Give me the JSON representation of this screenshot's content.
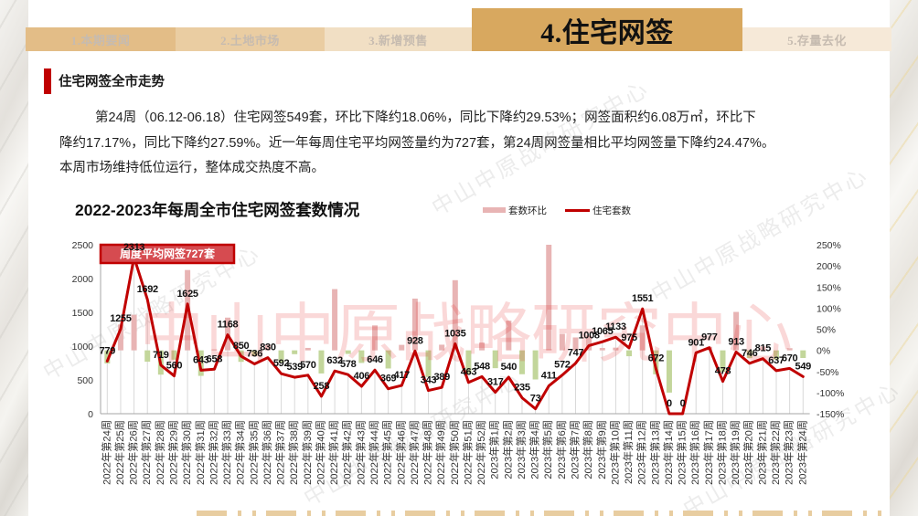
{
  "tabs": {
    "items": [
      {
        "label": "1.本期要闻",
        "active": false
      },
      {
        "label": "2.土地市场",
        "active": false
      },
      {
        "label": "3.新增预售",
        "active": false
      },
      {
        "label": "4.住宅网签",
        "active": true
      },
      {
        "label": "5.存量去化",
        "active": false
      }
    ]
  },
  "section": {
    "title": "住宅网签全市走势"
  },
  "summary": {
    "lines": [
      "第24周（06.12-06.18）住宅网签549套，环比下降约18.06%，同比下降约29.53%；网签面积约6.08万㎡，环比下",
      "降约17.17%，同比下降约27.59%。近一年每周住宅平均网签量约为727套，第24周网签量相比平均网签量下降约24.47%。",
      "本周市场维持低位运行，整体成交热度不高。"
    ]
  },
  "watermark": {
    "text": "中山中原战略研究中心"
  },
  "colors": {
    "accent": "#c00000",
    "line": "#c00000",
    "bar_positive": "#e8b4b4",
    "bar_negative": "#c3d69b",
    "drop_line": "#d9d9d9",
    "axis": "#a6a6a6",
    "annotation_fill": "#d64b50",
    "annotation_border": "#c00000",
    "tab_active": "#d8a85f"
  },
  "chart_data": {
    "type": "line",
    "title": "2022-2023年每周全市住宅网签套数情况",
    "xlabel": "",
    "ylabel": "",
    "grid": false,
    "legend": {
      "position": "top",
      "items": [
        {
          "label": "套数环比",
          "kind": "bar"
        },
        {
          "label": "住宅套数",
          "kind": "line"
        }
      ]
    },
    "annotation": {
      "text": "周度平均网签727套",
      "value": 727
    },
    "categories": [
      "2022年第24周",
      "2022年第25周",
      "2022年第26周",
      "2022年第27周",
      "2022年第28周",
      "2022年第29周",
      "2022年第30周",
      "2022年第31周",
      "2022年第32周",
      "2022年第33周",
      "2022年第34周",
      "2022年第35周",
      "2022年第36周",
      "2022年第37周",
      "2022年第38周",
      "2022年第39周",
      "2022年第40周",
      "2022年第41周",
      "2022年第42周",
      "2022年第43周",
      "2022年第44周",
      "2022年第45周",
      "2022年第46周",
      "2022年第47周",
      "2022年第48周",
      "2022年第49周",
      "2022年第50周",
      "2022年第51周",
      "2022年第52周",
      "2023年第1周",
      "2023年第2周",
      "2023年第3周",
      "2023年第4周",
      "2023年第5周",
      "2023年第6周",
      "2023年第7周",
      "2023年第8周",
      "2023年第9周",
      "2023年第10周",
      "2023年第11周",
      "2023年第12周",
      "2023年第13周",
      "2023年第14周",
      "2023年第15周",
      "2023年第16周",
      "2023年第17周",
      "2023年第18周",
      "2023年第19周",
      "2023年第20周",
      "2023年第21周",
      "2023年第22周",
      "2023年第23周",
      "2023年第24周"
    ],
    "series": [
      {
        "name": "套数环比",
        "type": "bar",
        "axis": "right",
        "unit": "%",
        "values": [
          -31,
          61.1,
          84.3,
          -26.8,
          -57.5,
          -22.1,
          190.2,
          -60.4,
          2.3,
          77.5,
          -27.2,
          -13.4,
          12.8,
          -28.7,
          -9.0,
          5.8,
          -54.7,
          145.0,
          -8.5,
          -29.8,
          59.1,
          -42.9,
          13.0,
          122.5,
          -63.0,
          13.4,
          166.1,
          -55.3,
          18.4,
          -42.2,
          70.3,
          -56.5,
          -68.9,
          463.0,
          39.2,
          30.6,
          34.9,
          5.7,
          6.4,
          -13.9,
          59.1,
          -56.7,
          -100.0,
          null,
          null,
          8.4,
          -51.1,
          91.0,
          -18.3,
          9.2,
          -21.8,
          5.2,
          -18.1
        ]
      },
      {
        "name": "住宅套数",
        "type": "line",
        "axis": "left",
        "unit": "套",
        "values": [
          779,
          1255,
          2313,
          1692,
          719,
          560,
          1625,
          643,
          658,
          1168,
          850,
          736,
          830,
          592,
          539,
          570,
          258,
          632,
          578,
          406,
          646,
          369,
          417,
          928,
          343,
          389,
          1035,
          463,
          548,
          317,
          540,
          235,
          73,
          411,
          572,
          747,
          1008,
          1065,
          1133,
          975,
          1551,
          672,
          0,
          0,
          901,
          977,
          478,
          913,
          746,
          815,
          637,
          670,
          549
        ]
      }
    ],
    "y1": {
      "min": 0,
      "max": 2500,
      "step": 500,
      "ticks": [
        0,
        500,
        1000,
        1500,
        2000,
        2500
      ],
      "tick_labels": [
        "0",
        "500",
        "1000",
        "1500",
        "2000",
        "2500"
      ]
    },
    "y2": {
      "min": -150,
      "max": 250,
      "step": 50,
      "ticks": [
        -150,
        -100,
        -50,
        0,
        50,
        100,
        150,
        200,
        250
      ],
      "tick_labels": [
        "-150%",
        "-100%",
        "-50%",
        "0%",
        "50%",
        "100%",
        "150%",
        "200%",
        "250%"
      ]
    }
  }
}
